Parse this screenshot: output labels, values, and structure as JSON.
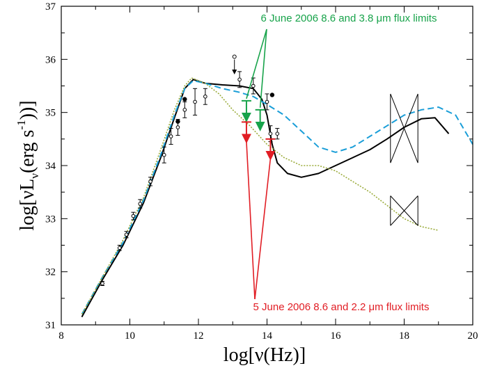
{
  "chart_data": {
    "type": "line",
    "xlabel": "log[ν(Hz)]",
    "ylabel_main": "log[νL",
    "ylabel_sub": "ν",
    "ylabel_units": "(erg s",
    "ylabel_sup": "-1",
    "ylabel_close": "))]",
    "xlim": [
      8,
      20
    ],
    "ylim": [
      31,
      37
    ],
    "x_ticks": [
      "8",
      "10",
      "12",
      "14",
      "16",
      "18",
      "20"
    ],
    "y_ticks": [
      "31",
      "32",
      "33",
      "34",
      "35",
      "36",
      "37"
    ],
    "grid": false,
    "colors": {
      "model_solid": "#000000",
      "model_dashed": "#1a9ed8",
      "model_dotted": "#9aab3a",
      "june6": "#17a34a",
      "june5": "#e11d24"
    },
    "series": [
      {
        "style": "solid",
        "x": [
          8.6,
          9.2,
          9.8,
          10.4,
          10.9,
          11.3,
          11.6,
          11.85,
          12.2,
          12.7,
          13.2,
          13.6,
          13.85,
          14.0,
          14.15,
          14.3,
          14.6,
          15.0,
          15.5,
          16.0,
          16.5,
          17.0,
          17.5,
          18.0,
          18.5,
          18.9,
          19.3
        ],
        "y": [
          31.15,
          31.85,
          32.5,
          33.3,
          34.15,
          34.9,
          35.45,
          35.62,
          35.55,
          35.52,
          35.5,
          35.45,
          35.25,
          34.95,
          34.4,
          34.05,
          33.85,
          33.78,
          33.85,
          34.0,
          34.15,
          34.3,
          34.5,
          34.72,
          34.88,
          34.9,
          34.6
        ]
      },
      {
        "style": "dashed",
        "x": [
          8.6,
          9.2,
          9.8,
          10.4,
          10.9,
          11.3,
          11.6,
          11.85,
          12.2,
          12.7,
          13.2,
          13.6,
          14.0,
          14.5,
          15.0,
          15.5,
          16.0,
          16.5,
          17.0,
          17.5,
          18.0,
          18.5,
          19.0,
          19.5,
          20.0
        ],
        "y": [
          31.2,
          31.9,
          32.55,
          33.35,
          34.2,
          34.95,
          35.45,
          35.6,
          35.55,
          35.45,
          35.38,
          35.3,
          35.15,
          34.95,
          34.65,
          34.35,
          34.25,
          34.35,
          34.55,
          34.75,
          34.95,
          35.05,
          35.1,
          34.95,
          34.4
        ]
      },
      {
        "style": "dotted",
        "x": [
          8.6,
          9.2,
          9.8,
          10.4,
          10.9,
          11.3,
          11.6,
          11.8,
          12.2,
          12.6,
          13.0,
          13.5,
          14.0,
          14.5,
          15.0,
          15.5,
          16.0,
          16.5,
          17.0,
          17.5,
          18.0,
          18.5,
          19.0
        ],
        "y": [
          31.2,
          31.9,
          32.6,
          33.4,
          34.3,
          35.05,
          35.5,
          35.65,
          35.55,
          35.35,
          35.05,
          34.75,
          34.4,
          34.15,
          34.0,
          34.0,
          33.9,
          33.7,
          33.5,
          33.25,
          33.0,
          32.85,
          32.78
        ]
      }
    ],
    "data_points": {
      "x": [
        9.2,
        9.7,
        9.9,
        10.1,
        10.3,
        10.6,
        11.0,
        11.2,
        11.4,
        11.6,
        11.9,
        12.2,
        13.2,
        13.6,
        14.0,
        14.1,
        14.3
      ],
      "y": [
        31.78,
        32.45,
        32.7,
        33.05,
        33.28,
        33.7,
        34.2,
        34.55,
        34.72,
        35.05,
        35.2,
        35.3,
        35.62,
        35.5,
        35.2,
        34.6,
        34.6
      ],
      "yerr": [
        0.04,
        0.05,
        0.06,
        0.07,
        0.08,
        0.08,
        0.15,
        0.15,
        0.15,
        0.15,
        0.25,
        0.15,
        0.15,
        0.15,
        0.15,
        0.15,
        0.1
      ],
      "filled_x": [
        11.4,
        11.6,
        14.15
      ],
      "filled_y": [
        34.83,
        35.25,
        35.33
      ],
      "upper_limit": [
        13.05,
        36.05
      ]
    },
    "flux_limits": {
      "june6": {
        "x": [
          13.4,
          13.8
        ],
        "y": [
          35.22,
          35.05
        ]
      },
      "june5": {
        "x": [
          13.4,
          14.1
        ],
        "y": [
          34.82,
          34.5
        ]
      }
    },
    "bowties": [
      {
        "x0": 17.6,
        "x1": 18.4,
        "y_center": 34.7,
        "spread": 0.65
      },
      {
        "x0": 17.6,
        "x1": 18.4,
        "y_center": 33.15,
        "spread": 0.28
      }
    ],
    "annotations": {
      "june6": "6 June 2006 8.6 and 3.8 μm flux limits",
      "june5": "5 June 2006 8.6 and 2.2 μm flux limits"
    }
  }
}
